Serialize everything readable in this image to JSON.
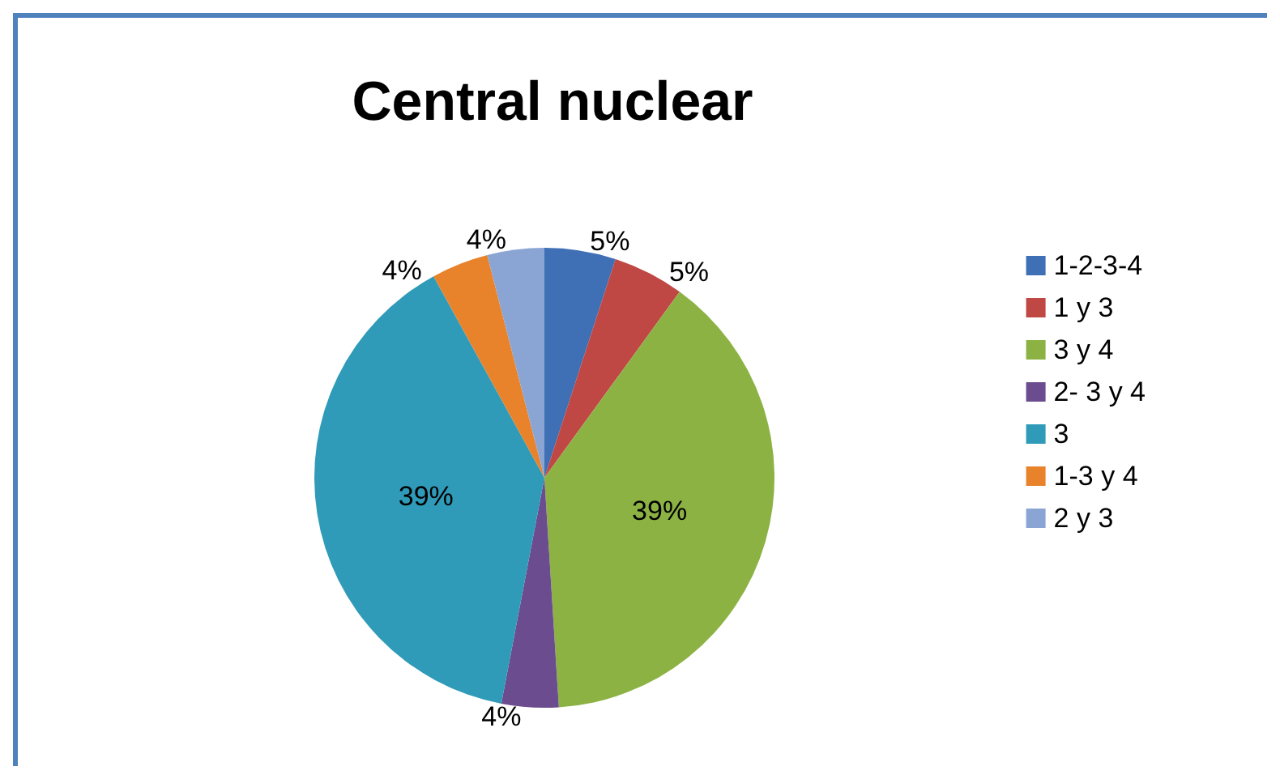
{
  "chart_data": {
    "type": "pie",
    "title": "Central nuclear",
    "categories": [
      "1-2-3-4",
      "1 y 3",
      "3 y 4",
      "2- 3 y 4",
      "3",
      "1-3 y 4",
      "2 y 3"
    ],
    "values": [
      5,
      5,
      39,
      4,
      39,
      4,
      4
    ],
    "colors": [
      "#3f6fb5",
      "#bf4744",
      "#8db244",
      "#6b4c8f",
      "#2f9bb8",
      "#e8832c",
      "#8aa5d4"
    ],
    "value_labels": [
      "5%",
      "5%",
      "39%",
      "4%",
      "39%",
      "4%",
      "4%"
    ],
    "legend": "right"
  }
}
